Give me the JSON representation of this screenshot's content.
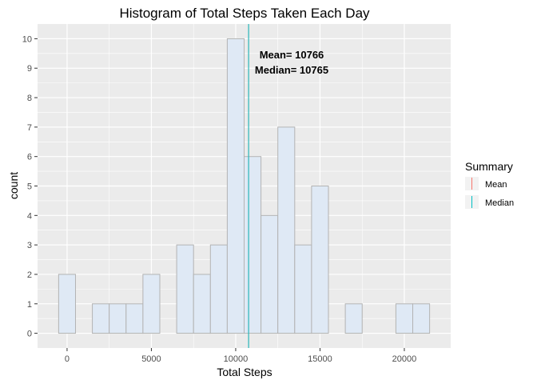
{
  "chart_data": {
    "type": "bar",
    "title": "Histogram of Total Steps Taken Each Day",
    "xlabel": "Total Steps",
    "ylabel": "count",
    "bin_width": 1000,
    "bin_start": -500,
    "values": [
      2,
      0,
      1,
      1,
      1,
      2,
      0,
      3,
      2,
      3,
      10,
      6,
      4,
      7,
      3,
      5,
      0,
      1,
      0,
      0,
      1,
      1
    ],
    "xlim": [
      -1750,
      22750
    ],
    "ylim": [
      -0.5,
      10.5
    ],
    "x_ticks": [
      0,
      5000,
      10000,
      15000,
      20000
    ],
    "x_tick_labels": [
      "0",
      "5000",
      "10000",
      "15000",
      "20000"
    ],
    "y_ticks": [
      0,
      1,
      2,
      3,
      4,
      5,
      6,
      7,
      8,
      9,
      10
    ],
    "y_tick_labels": [
      "0",
      "1",
      "2",
      "3",
      "4",
      "5",
      "6",
      "7",
      "8",
      "9",
      "10"
    ],
    "mean": 10766,
    "median": 10765,
    "annotations": {
      "mean_text": "Mean= 10766",
      "median_text": "Median= 10765"
    },
    "legend": {
      "title": "Summary",
      "position": "right",
      "items": [
        {
          "label": "Mean",
          "color": "#f8766d"
        },
        {
          "label": "Median",
          "color": "#00bfc4"
        }
      ]
    },
    "colors": {
      "bar_fill": "#dfe9f5",
      "bar_stroke": "#b3b3b3",
      "panel_bg": "#ebebeb",
      "grid": "#ffffff",
      "mean_line": "#f8766d",
      "median_line": "#00bfc4"
    },
    "grid": true
  }
}
